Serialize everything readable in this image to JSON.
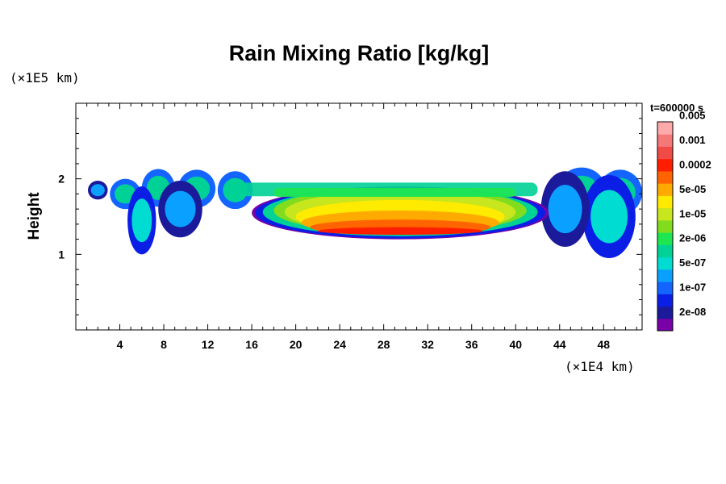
{
  "chart_data": {
    "type": "heatmap",
    "title": "Rain Mixing Ratio [kg/kg]",
    "ylabel": "Height",
    "x_unit": "(×1E4 km)",
    "y_unit": "(×1E5 km)",
    "time_label": "t=600000 s",
    "xlim": [
      0,
      51.5
    ],
    "ylim": [
      0,
      3
    ],
    "x_ticks": [
      4,
      8,
      12,
      16,
      20,
      24,
      28,
      32,
      36,
      40,
      44,
      48
    ],
    "y_ticks": [
      1,
      2
    ],
    "colorbar": {
      "colors": [
        "#7a00a8",
        "#1a1a9a",
        "#0a1ee6",
        "#1464ff",
        "#0aa0ff",
        "#00dcd2",
        "#00d296",
        "#1ee650",
        "#82dc1e",
        "#c8e61e",
        "#ffeb00",
        "#ffaa00",
        "#ff6400",
        "#ff1e00",
        "#f04b46",
        "#f57878",
        "#ffaaaa"
      ],
      "labels": [
        "2e-08",
        "1e-07",
        "5e-07",
        "2e-06",
        "1e-05",
        "5e-05",
        "0.0002",
        "0.001",
        "0.005"
      ]
    },
    "field": {
      "description_of_levels": "contour levels index into colorbar.colors",
      "blobs": [
        {
          "cx": 29.5,
          "cy": 1.55,
          "rx": 13.5,
          "ry": 0.35,
          "level": 0
        },
        {
          "cx": 29.5,
          "cy": 1.55,
          "rx": 13.2,
          "ry": 0.34,
          "level": 2
        },
        {
          "cx": 29.5,
          "cy": 1.56,
          "rx": 12.5,
          "ry": 0.32,
          "level": 6
        },
        {
          "cx": 29.5,
          "cy": 1.58,
          "rx": 11.5,
          "ry": 0.3,
          "level": 8
        },
        {
          "cx": 29.5,
          "cy": 1.56,
          "rx": 10.5,
          "ry": 0.28,
          "level": 9
        },
        {
          "cx": 29.5,
          "cy": 1.5,
          "rx": 9.5,
          "ry": 0.22,
          "level": 10
        },
        {
          "cx": 29.5,
          "cy": 1.42,
          "rx": 9.0,
          "ry": 0.16,
          "level": 11
        },
        {
          "cx": 29.5,
          "cy": 1.36,
          "rx": 8.2,
          "ry": 0.1,
          "level": 12
        },
        {
          "cx": 29.5,
          "cy": 1.31,
          "rx": 7.5,
          "ry": 0.05,
          "level": 13
        }
      ]
    }
  }
}
